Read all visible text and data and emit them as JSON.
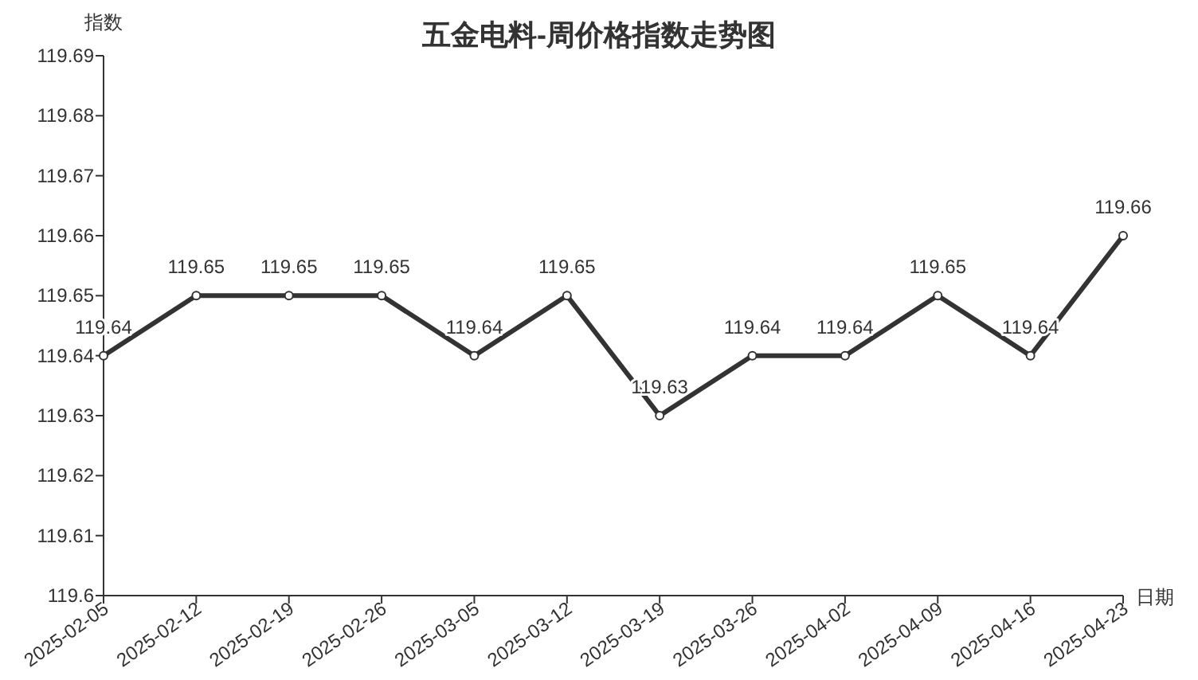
{
  "chart_data": {
    "type": "line",
    "title": "五金电料-周价格指数走势图",
    "xlabel": "日期",
    "ylabel": "指数",
    "categories": [
      "2025-02-05",
      "2025-02-12",
      "2025-02-19",
      "2025-02-26",
      "2025-03-05",
      "2025-03-12",
      "2025-03-19",
      "2025-03-26",
      "2025-04-02",
      "2025-04-09",
      "2025-04-16",
      "2025-04-23"
    ],
    "series": [
      {
        "color": "#333333",
        "values": [
          119.64,
          119.65,
          119.65,
          119.65,
          119.64,
          119.65,
          119.63,
          119.64,
          119.64,
          119.65,
          119.64,
          119.66
        ]
      }
    ],
    "ylim": [
      119.6,
      119.69
    ],
    "yticks": [
      119.6,
      119.61,
      119.62,
      119.63,
      119.64,
      119.65,
      119.66,
      119.67,
      119.68,
      119.69
    ],
    "marker": "circle",
    "data_labels": true,
    "grid": false
  }
}
